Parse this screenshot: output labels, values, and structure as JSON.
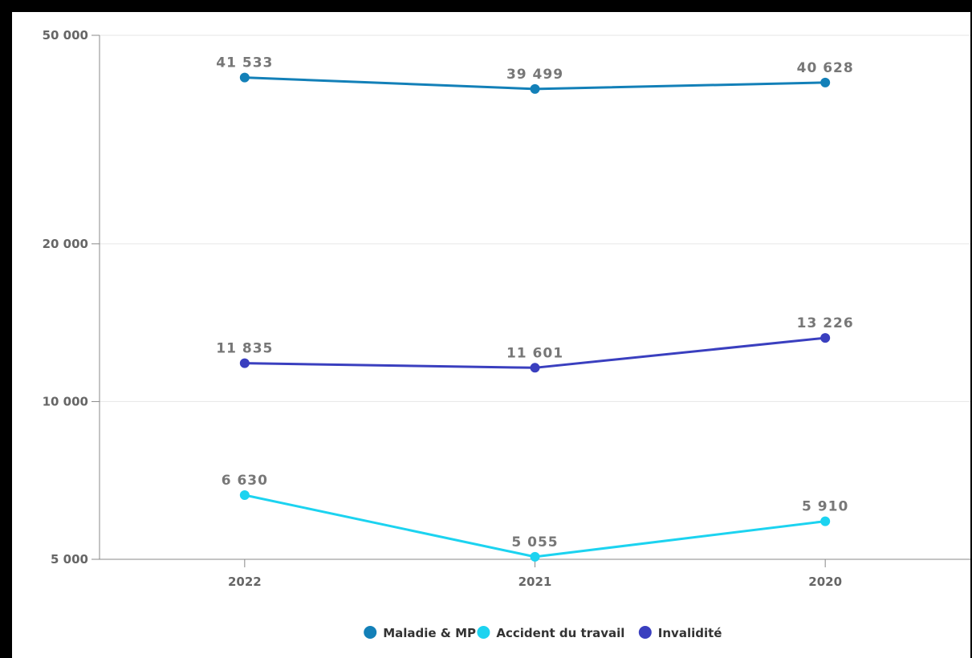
{
  "chart_data": {
    "type": "line",
    "title": "",
    "xlabel": "",
    "ylabel": "",
    "y_scale": "log",
    "ylim": [
      5000,
      50000
    ],
    "y_ticks": [
      5000,
      10000,
      20000,
      50000
    ],
    "y_tick_labels": [
      "5 000",
      "10 000",
      "20 000",
      "50 000"
    ],
    "categories": [
      "2022",
      "2021",
      "2020"
    ],
    "grid": true,
    "legend_position": "bottom",
    "series": [
      {
        "name": "Maladie & MP",
        "color": "#1380b8",
        "values": [
          41533,
          39499,
          40628
        ],
        "labels": [
          "41 533",
          "39 499",
          "40 628"
        ]
      },
      {
        "name": "Accident du travail",
        "color": "#1cd3f0",
        "values": [
          6630,
          5055,
          5910
        ],
        "labels": [
          "6 630",
          "5 055",
          "5 910"
        ]
      },
      {
        "name": "Invalidité",
        "color": "#3a3fbf",
        "values": [
          11835,
          11601,
          13226
        ],
        "labels": [
          "11 835",
          "11 601",
          "13 226"
        ]
      }
    ]
  }
}
